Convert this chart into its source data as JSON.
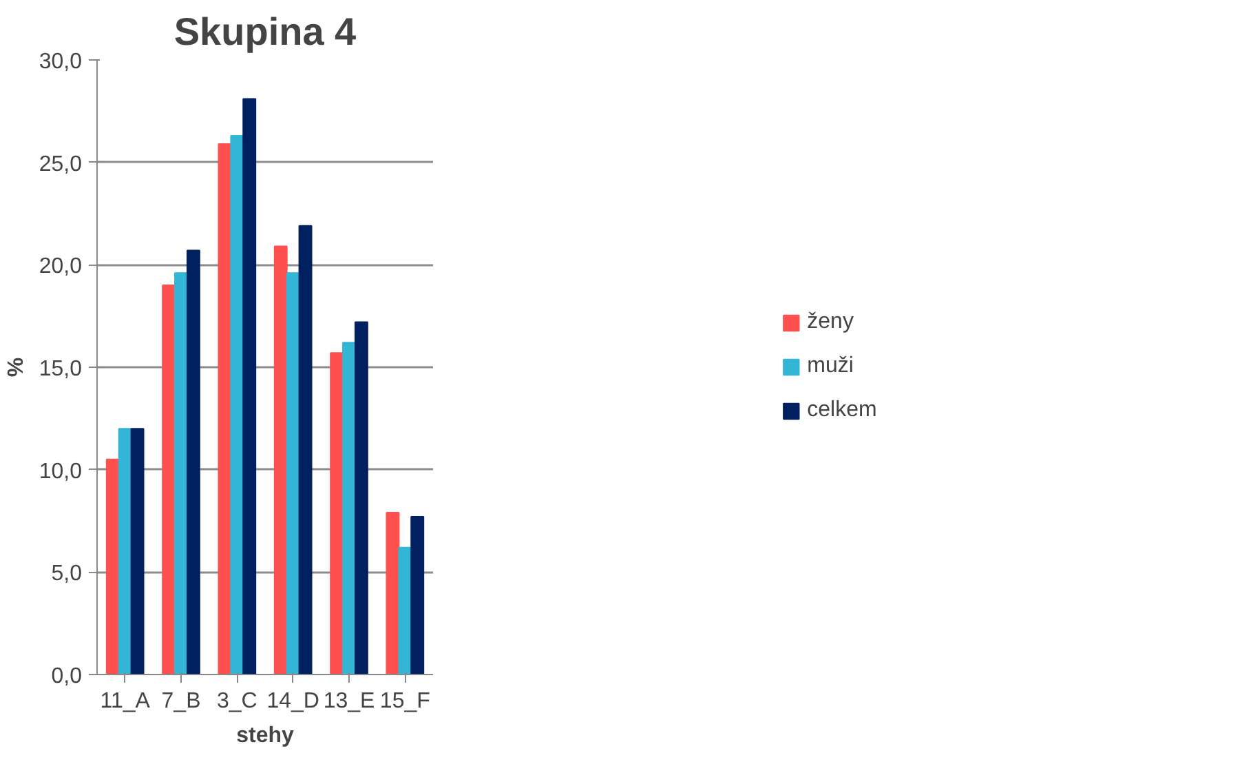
{
  "chart_data": {
    "type": "bar",
    "title": "Skupina 4",
    "xlabel": "stehy",
    "ylabel": "%",
    "categories": [
      "11_A",
      "7_B",
      "3_C",
      "14_D",
      "13_E",
      "15_F"
    ],
    "series": [
      {
        "name": "ženy",
        "color": "#ff5050",
        "values": [
          10.5,
          19.0,
          25.9,
          20.9,
          15.7,
          7.9
        ]
      },
      {
        "name": "muži",
        "color": "#33b5d5",
        "values": [
          12.0,
          19.6,
          26.3,
          19.6,
          16.2,
          6.2
        ]
      },
      {
        "name": "celkem",
        "color": "#002060",
        "values": [
          12.0,
          20.7,
          28.1,
          21.9,
          17.2,
          7.7
        ]
      }
    ],
    "ylim": [
      0,
      30
    ],
    "yticks": [
      {
        "value": 0,
        "label": "0,0"
      },
      {
        "value": 5,
        "label": "5,0"
      },
      {
        "value": 10,
        "label": "10,0"
      },
      {
        "value": 15,
        "label": "15,0"
      },
      {
        "value": 20,
        "label": "20,0"
      },
      {
        "value": 25,
        "label": "25,0"
      },
      {
        "value": 30,
        "label": "30,0"
      }
    ],
    "grid": "y",
    "legend": "right"
  }
}
